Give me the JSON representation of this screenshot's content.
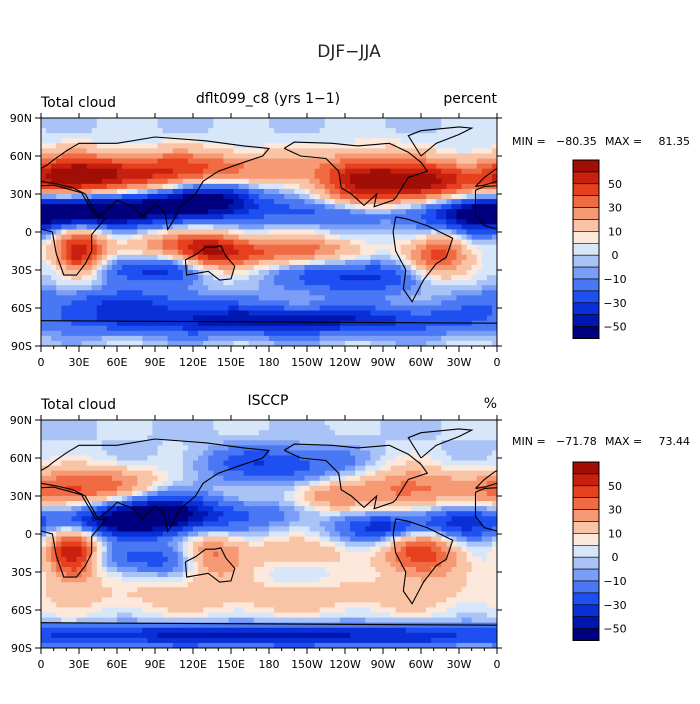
{
  "figure_title": "DJF−JJA",
  "chart_data": [
    {
      "type": "heatmap",
      "title_left": "Total cloud",
      "title_center": "dflt099_c8 (yrs 1−1)",
      "title_right": "percent",
      "stats": {
        "min_label": "MIN =",
        "min": "−80.35",
        "max_label": "MAX =",
        "max": "81.35"
      },
      "x_ticks": [
        "0",
        "30E",
        "60E",
        "90E",
        "120E",
        "150E",
        "180",
        "150W",
        "120W",
        "90W",
        "60W",
        "30W",
        "0"
      ],
      "y_ticks": [
        "90N",
        "60N",
        "30N",
        "0",
        "30S",
        "60S",
        "90S"
      ],
      "xlim": [
        0,
        360
      ],
      "ylim": [
        -90,
        90
      ],
      "colorbar_labels": [
        "50",
        "30",
        "10",
        "0",
        "−10",
        "−30",
        "−50"
      ],
      "colorbar_levels": [
        -60,
        -50,
        -40,
        -30,
        -20,
        -10,
        -5,
        0,
        5,
        10,
        20,
        30,
        40,
        50,
        60,
        70
      ],
      "anomalies": [
        {
          "lon": 60,
          "lat": 45,
          "amp": 45,
          "rx": 55,
          "ry": 12
        },
        {
          "lon": 20,
          "lat": 40,
          "amp": 40,
          "rx": 25,
          "ry": 12
        },
        {
          "lon": 150,
          "lat": 50,
          "amp": 28,
          "rx": 60,
          "ry": 10
        },
        {
          "lon": 255,
          "lat": 40,
          "amp": 55,
          "rx": 25,
          "ry": 15
        },
        {
          "lon": 305,
          "lat": 38,
          "amp": 60,
          "rx": 25,
          "ry": 12
        },
        {
          "lon": 30,
          "lat": -17,
          "amp": 60,
          "rx": 14,
          "ry": 14
        },
        {
          "lon": 135,
          "lat": -18,
          "amp": 45,
          "rx": 20,
          "ry": 12
        },
        {
          "lon": 195,
          "lat": -15,
          "amp": 40,
          "rx": 40,
          "ry": 8
        },
        {
          "lon": 310,
          "lat": -15,
          "amp": 55,
          "rx": 18,
          "ry": 15
        },
        {
          "lon": 100,
          "lat": -10,
          "amp": 25,
          "rx": 30,
          "ry": 8
        },
        {
          "lon": 80,
          "lat": 20,
          "amp": -60,
          "rx": 45,
          "ry": 10
        },
        {
          "lon": 25,
          "lat": 15,
          "amp": -45,
          "rx": 30,
          "ry": 8
        },
        {
          "lon": 140,
          "lat": 28,
          "amp": -45,
          "rx": 25,
          "ry": 10
        },
        {
          "lon": 335,
          "lat": 15,
          "amp": -50,
          "rx": 30,
          "ry": 12
        },
        {
          "lon": 230,
          "lat": 15,
          "amp": -25,
          "rx": 45,
          "ry": 8
        },
        {
          "lon": 90,
          "lat": -30,
          "amp": -35,
          "rx": 40,
          "ry": 8
        },
        {
          "lon": 250,
          "lat": -35,
          "amp": -35,
          "rx": 40,
          "ry": 10
        },
        {
          "lon": 180,
          "lat": -70,
          "amp": -45,
          "rx": 120,
          "ry": 8
        },
        {
          "lon": 60,
          "lat": -55,
          "amp": -25,
          "rx": 60,
          "ry": 8
        },
        {
          "lon": 300,
          "lat": -5,
          "amp": -25,
          "rx": 15,
          "ry": 10
        }
      ]
    },
    {
      "type": "heatmap",
      "title_left": "Total cloud",
      "title_center": "ISCCP",
      "title_right": "%",
      "stats": {
        "min_label": "MIN =",
        "min": "−71.78",
        "max_label": "MAX =",
        "max": "73.44"
      },
      "x_ticks": [
        "0",
        "30E",
        "60E",
        "90E",
        "120E",
        "150E",
        "180",
        "150W",
        "120W",
        "90W",
        "60W",
        "30W",
        "0"
      ],
      "y_ticks": [
        "90N",
        "60N",
        "30N",
        "0",
        "30S",
        "60S",
        "90S"
      ],
      "xlim": [
        0,
        360
      ],
      "ylim": [
        -90,
        90
      ],
      "colorbar_labels": [
        "50",
        "30",
        "10",
        "0",
        "−10",
        "−30",
        "−50"
      ],
      "colorbar_levels": [
        -60,
        -50,
        -40,
        -30,
        -20,
        -10,
        -5,
        0,
        5,
        10,
        20,
        30,
        40,
        50,
        60,
        70
      ],
      "anomalies": [
        {
          "lon": 25,
          "lat": -17,
          "amp": 65,
          "rx": 14,
          "ry": 14
        },
        {
          "lon": 300,
          "lat": -15,
          "amp": 50,
          "rx": 20,
          "ry": 15
        },
        {
          "lon": 135,
          "lat": -18,
          "amp": 40,
          "rx": 18,
          "ry": 12
        },
        {
          "lon": 15,
          "lat": 35,
          "amp": 35,
          "rx": 30,
          "ry": 10
        },
        {
          "lon": 60,
          "lat": 40,
          "amp": 25,
          "rx": 30,
          "ry": 10
        },
        {
          "lon": 290,
          "lat": 35,
          "amp": 35,
          "rx": 30,
          "ry": 12
        },
        {
          "lon": 225,
          "lat": 30,
          "amp": 25,
          "rx": 20,
          "ry": 8
        },
        {
          "lon": 180,
          "lat": -50,
          "amp": 15,
          "rx": 150,
          "ry": 10
        },
        {
          "lon": 200,
          "lat": -15,
          "amp": 20,
          "rx": 30,
          "ry": 8
        },
        {
          "lon": 90,
          "lat": 15,
          "amp": -55,
          "rx": 30,
          "ry": 12
        },
        {
          "lon": 50,
          "lat": 10,
          "amp": -35,
          "rx": 30,
          "ry": 8
        },
        {
          "lon": 185,
          "lat": 55,
          "amp": -30,
          "rx": 40,
          "ry": 10
        },
        {
          "lon": 275,
          "lat": 5,
          "amp": -40,
          "rx": 25,
          "ry": 8
        },
        {
          "lon": 330,
          "lat": 10,
          "amp": -35,
          "rx": 25,
          "ry": 10
        },
        {
          "lon": 90,
          "lat": -20,
          "amp": -25,
          "rx": 40,
          "ry": 8
        },
        {
          "lon": 180,
          "lat": -80,
          "amp": -45,
          "rx": 180,
          "ry": 6
        },
        {
          "lon": 150,
          "lat": 15,
          "amp": -20,
          "rx": 40,
          "ry": 8
        }
      ]
    }
  ]
}
